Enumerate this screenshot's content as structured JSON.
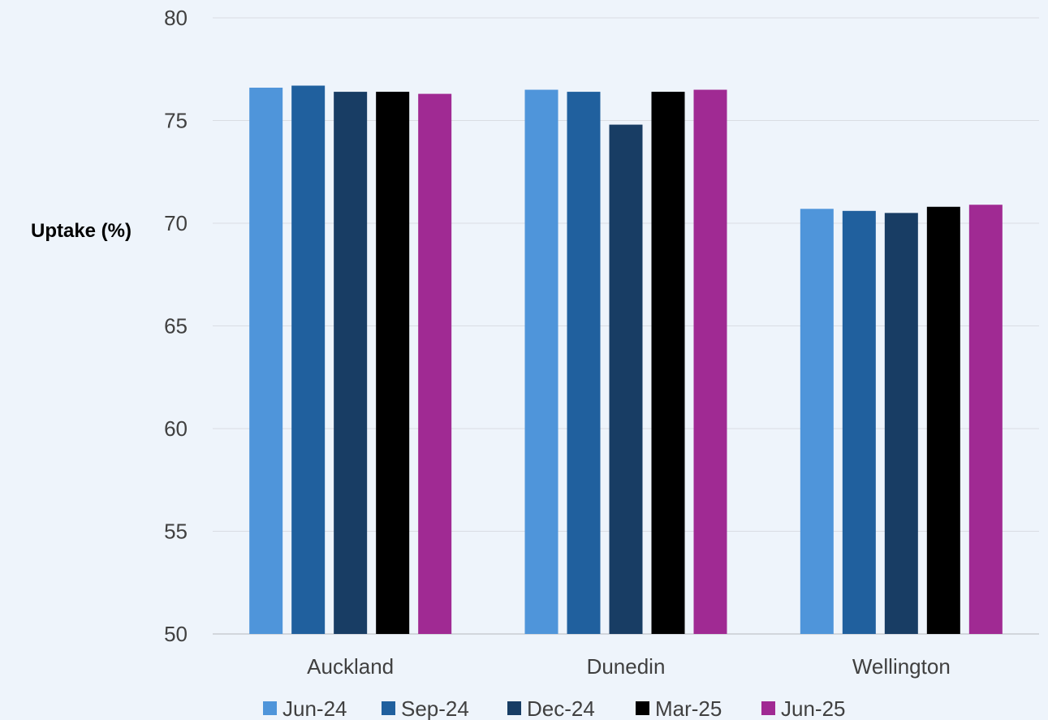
{
  "chart_data": {
    "type": "bar",
    "title": "",
    "xlabel": "",
    "ylabel": "Uptake (%)",
    "ylim": [
      50,
      80
    ],
    "yticks": [
      50,
      55,
      60,
      65,
      70,
      75,
      80
    ],
    "grid": true,
    "legend_position": "bottom",
    "categories": [
      "Auckland",
      "Dunedin",
      "Wellington"
    ],
    "series": [
      {
        "name": "Jun-24",
        "color": "#4f95da",
        "values": [
          76.6,
          76.5,
          70.7
        ]
      },
      {
        "name": "Sep-24",
        "color": "#20609e",
        "values": [
          76.7,
          76.4,
          70.6
        ]
      },
      {
        "name": "Dec-24",
        "color": "#183d64",
        "values": [
          76.4,
          74.8,
          70.5
        ]
      },
      {
        "name": "Mar-25",
        "color": "#000000",
        "values": [
          76.4,
          76.4,
          70.8
        ]
      },
      {
        "name": "Jun-25",
        "color": "#a02a93",
        "values": [
          76.3,
          76.5,
          70.9
        ]
      }
    ]
  }
}
